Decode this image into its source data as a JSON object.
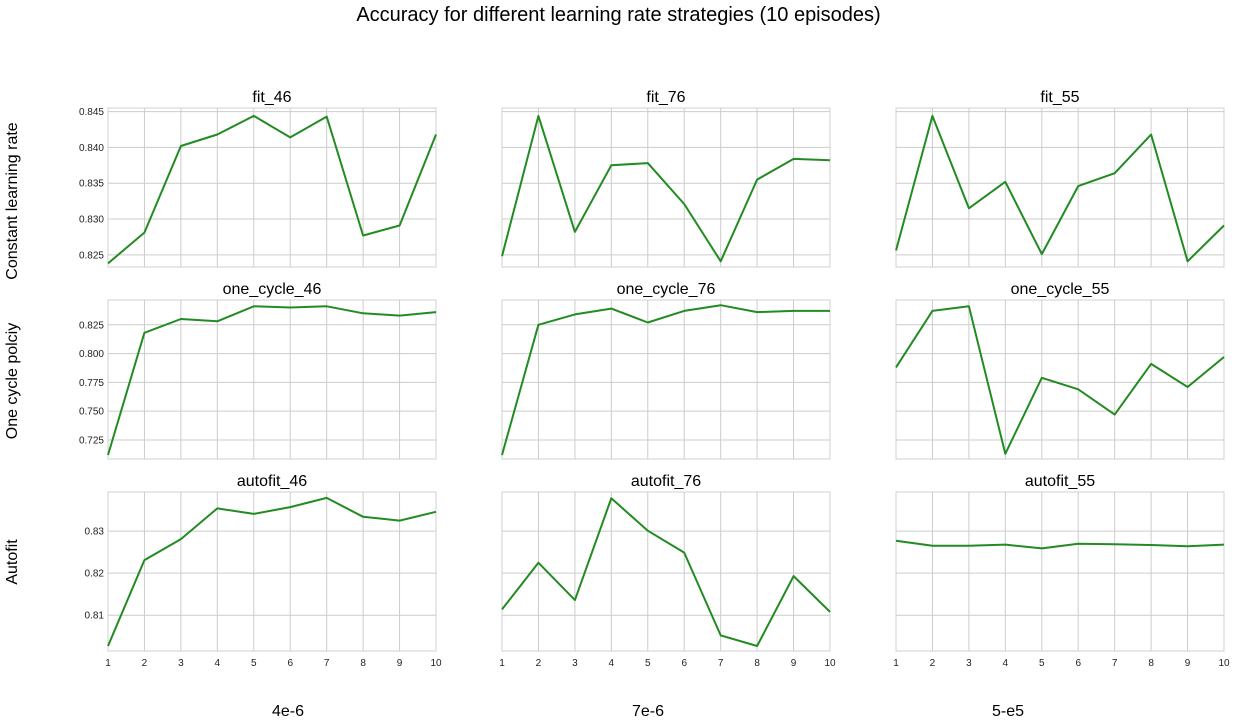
{
  "title": "Accuracy for different learning rate strategies (10 episodes)",
  "row_labels": [
    "Constant learning rate",
    "One cycle polciy",
    "Autofit"
  ],
  "column_labels": [
    "4e-6",
    "7e-6",
    "5-e5"
  ],
  "line_color": "#228B22",
  "grid_color": "#cccccc",
  "chart_data": [
    {
      "type": "line",
      "title": "fit_46",
      "x": [
        1,
        2,
        3,
        4,
        5,
        6,
        7,
        8,
        9,
        10
      ],
      "values": [
        0.8238,
        0.8281,
        0.8402,
        0.8418,
        0.8444,
        0.8414,
        0.8443,
        0.8277,
        0.8291,
        0.8418
      ],
      "ylim": [
        0.8233,
        0.8455
      ],
      "yticks": [
        0.825,
        0.83,
        0.835,
        0.84,
        0.845
      ],
      "ytick_labels": [
        "0.825",
        "0.830",
        "0.835",
        "0.840",
        "0.845"
      ],
      "xticks": [
        1,
        2,
        3,
        4,
        5,
        6,
        7,
        8,
        9,
        10
      ],
      "show_xtick_labels": false,
      "grid": true
    },
    {
      "type": "line",
      "title": "fit_76",
      "x": [
        1,
        2,
        3,
        4,
        5,
        6,
        7,
        8,
        9,
        10
      ],
      "values": [
        0.8248,
        0.8444,
        0.8282,
        0.8375,
        0.8378,
        0.8321,
        0.8241,
        0.8355,
        0.8384,
        0.8382
      ],
      "ylim": [
        0.8233,
        0.8455
      ],
      "yticks": [
        0.825,
        0.83,
        0.835,
        0.84,
        0.845
      ],
      "ytick_labels": [],
      "xticks": [
        1,
        2,
        3,
        4,
        5,
        6,
        7,
        8,
        9,
        10
      ],
      "show_xtick_labels": false,
      "grid": true
    },
    {
      "type": "line",
      "title": "fit_55",
      "x": [
        1,
        2,
        3,
        4,
        5,
        6,
        7,
        8,
        9,
        10
      ],
      "values": [
        0.8256,
        0.8444,
        0.8315,
        0.8352,
        0.8251,
        0.8346,
        0.8364,
        0.8418,
        0.8241,
        0.8291
      ],
      "ylim": [
        0.8233,
        0.8455
      ],
      "yticks": [
        0.825,
        0.83,
        0.835,
        0.84,
        0.845
      ],
      "ytick_labels": [],
      "xticks": [
        1,
        2,
        3,
        4,
        5,
        6,
        7,
        8,
        9,
        10
      ],
      "show_xtick_labels": false,
      "grid": true
    },
    {
      "type": "line",
      "title": "one_cycle_46",
      "x": [
        1,
        2,
        3,
        4,
        5,
        6,
        7,
        8,
        9,
        10
      ],
      "values": [
        0.712,
        0.818,
        0.83,
        0.828,
        0.841,
        0.84,
        0.841,
        0.835,
        0.833,
        0.836
      ],
      "ylim": [
        0.7085,
        0.8465
      ],
      "yticks": [
        0.725,
        0.75,
        0.775,
        0.8,
        0.825
      ],
      "ytick_labels": [
        "0.725",
        "0.750",
        "0.775",
        "0.800",
        "0.825"
      ],
      "xticks": [
        1,
        2,
        3,
        4,
        5,
        6,
        7,
        8,
        9,
        10
      ],
      "show_xtick_labels": false,
      "grid": true
    },
    {
      "type": "line",
      "title": "one_cycle_76",
      "x": [
        1,
        2,
        3,
        4,
        5,
        6,
        7,
        8,
        9,
        10
      ],
      "values": [
        0.712,
        0.825,
        0.834,
        0.839,
        0.827,
        0.837,
        0.842,
        0.836,
        0.837,
        0.837
      ],
      "ylim": [
        0.7085,
        0.8465
      ],
      "yticks": [
        0.725,
        0.75,
        0.775,
        0.8,
        0.825
      ],
      "ytick_labels": [],
      "xticks": [
        1,
        2,
        3,
        4,
        5,
        6,
        7,
        8,
        9,
        10
      ],
      "show_xtick_labels": false,
      "grid": true
    },
    {
      "type": "line",
      "title": "one_cycle_55",
      "x": [
        1,
        2,
        3,
        4,
        5,
        6,
        7,
        8,
        9,
        10
      ],
      "values": [
        0.788,
        0.837,
        0.841,
        0.713,
        0.779,
        0.769,
        0.747,
        0.791,
        0.771,
        0.797
      ],
      "ylim": [
        0.7085,
        0.8465
      ],
      "yticks": [
        0.725,
        0.75,
        0.775,
        0.8,
        0.825
      ],
      "ytick_labels": [],
      "xticks": [
        1,
        2,
        3,
        4,
        5,
        6,
        7,
        8,
        9,
        10
      ],
      "show_xtick_labels": false,
      "grid": true
    },
    {
      "type": "line",
      "title": "autofit_46",
      "x": [
        1,
        2,
        3,
        4,
        5,
        6,
        7,
        8,
        9,
        10
      ],
      "values": [
        0.8027,
        0.8231,
        0.8281,
        0.8354,
        0.8341,
        0.8357,
        0.8379,
        0.8334,
        0.8325,
        0.8346
      ],
      "ylim": [
        0.8015,
        0.8393
      ],
      "yticks": [
        0.81,
        0.82,
        0.83
      ],
      "ytick_labels": [
        "0.81",
        "0.82",
        "0.83"
      ],
      "xticks": [
        1,
        2,
        3,
        4,
        5,
        6,
        7,
        8,
        9,
        10
      ],
      "show_xtick_labels": true,
      "grid": true
    },
    {
      "type": "line",
      "title": "autofit_76",
      "x": [
        1,
        2,
        3,
        4,
        5,
        6,
        7,
        8,
        9,
        10
      ],
      "values": [
        0.8114,
        0.8225,
        0.8136,
        0.8378,
        0.8301,
        0.8249,
        0.8052,
        0.8027,
        0.8193,
        0.8108
      ],
      "ylim": [
        0.8015,
        0.8393
      ],
      "yticks": [
        0.81,
        0.82,
        0.83
      ],
      "ytick_labels": [],
      "xticks": [
        1,
        2,
        3,
        4,
        5,
        6,
        7,
        8,
        9,
        10
      ],
      "show_xtick_labels": true,
      "grid": true
    },
    {
      "type": "line",
      "title": "autofit_55",
      "x": [
        1,
        2,
        3,
        4,
        5,
        6,
        7,
        8,
        9,
        10
      ],
      "values": [
        0.8277,
        0.8265,
        0.8265,
        0.8268,
        0.8259,
        0.827,
        0.8269,
        0.8267,
        0.8264,
        0.8268
      ],
      "ylim": [
        0.8015,
        0.8393
      ],
      "yticks": [
        0.81,
        0.82,
        0.83
      ],
      "ytick_labels": [],
      "xticks": [
        1,
        2,
        3,
        4,
        5,
        6,
        7,
        8,
        9,
        10
      ],
      "show_xtick_labels": true,
      "grid": true
    }
  ]
}
